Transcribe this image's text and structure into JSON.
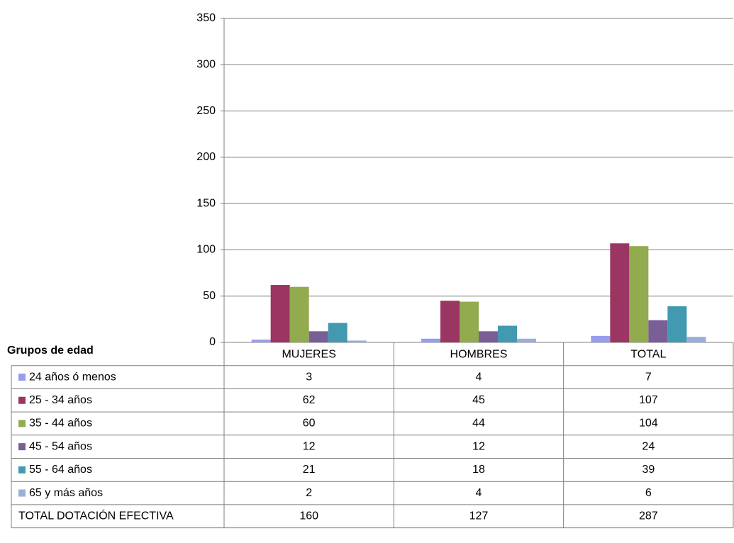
{
  "chart_data": {
    "type": "bar",
    "legend_title": "Grupos de edad",
    "categories": [
      "MUJERES",
      "HOMBRES",
      "TOTAL"
    ],
    "series": [
      {
        "name": "24 años ó menos",
        "color": "#9a9cf0",
        "values": [
          3,
          4,
          7
        ]
      },
      {
        "name": "25 - 34 años",
        "color": "#9b3562",
        "values": [
          62,
          45,
          107
        ]
      },
      {
        "name": "35 - 44 años",
        "color": "#92ab4f",
        "values": [
          60,
          44,
          104
        ]
      },
      {
        "name": "45 - 54 años",
        "color": "#7a5f96",
        "values": [
          12,
          12,
          24
        ]
      },
      {
        "name": "55 - 64 años",
        "color": "#4299b0",
        "values": [
          21,
          18,
          39
        ]
      },
      {
        "name": "65  y más años",
        "color": "#9aaed8",
        "values": [
          2,
          4,
          6
        ]
      }
    ],
    "total_row": {
      "name": "TOTAL DOTACIÓN EFECTIVA",
      "values": [
        160,
        127,
        287
      ]
    },
    "ylim": [
      0,
      350
    ],
    "yticks": [
      0,
      50,
      100,
      150,
      200,
      250,
      300,
      350
    ],
    "grid": true
  }
}
